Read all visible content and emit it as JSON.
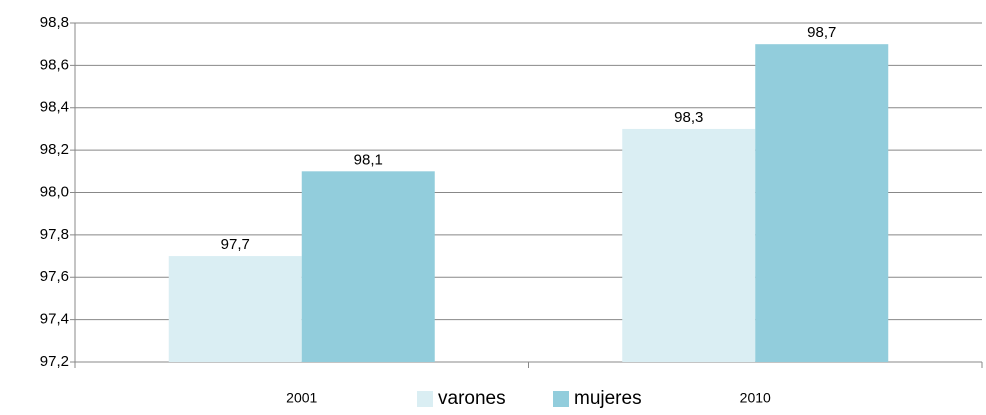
{
  "chart_data": {
    "type": "bar",
    "categories": [
      "2001",
      "2010"
    ],
    "series": [
      {
        "name": "varones",
        "color": "#daeef3",
        "values": [
          97.7,
          98.3
        ],
        "value_labels": [
          "97,7",
          "98,3"
        ]
      },
      {
        "name": "mujeres",
        "color": "#92cddc",
        "values": [
          98.1,
          98.7
        ],
        "value_labels": [
          "98,1",
          "98,7"
        ]
      }
    ],
    "ylim": [
      97.2,
      98.8
    ],
    "yticks": [
      {
        "value": 97.2,
        "label": "97,2"
      },
      {
        "value": 97.4,
        "label": "97,4"
      },
      {
        "value": 97.6,
        "label": "97,6"
      },
      {
        "value": 97.8,
        "label": "97,8"
      },
      {
        "value": 98.0,
        "label": "98,0"
      },
      {
        "value": 98.2,
        "label": "98,2"
      },
      {
        "value": 98.4,
        "label": "98,4"
      },
      {
        "value": 98.6,
        "label": "98,6"
      },
      {
        "value": 98.8,
        "label": "98,8"
      }
    ],
    "grid": true,
    "legend": "bottom"
  }
}
